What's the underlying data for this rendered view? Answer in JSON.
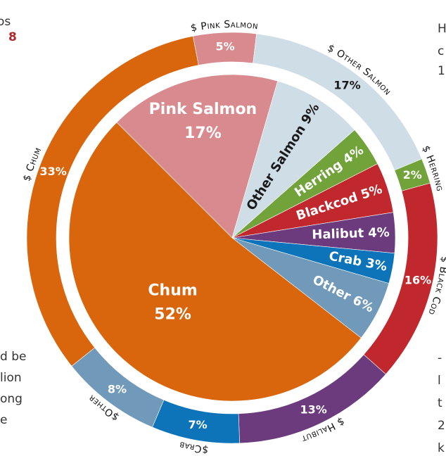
{
  "chart_data": [
    {
      "type": "pie",
      "categories": [
        "Pink Salmon",
        "Other Salmon",
        "Herring",
        "Blackcod",
        "Halibut",
        "Crab",
        "Other",
        "Chum"
      ],
      "values": [
        17,
        9,
        4,
        5,
        4,
        3,
        6,
        52
      ],
      "value_labels": [
        "17%",
        "9%",
        "4%",
        "5%",
        "4%",
        "3%",
        "6%",
        "52%"
      ],
      "colors": [
        "#d98a8e",
        "#cfdde7",
        "#72a33a",
        "#c1282e",
        "#6b3b7e",
        "#0d74b9",
        "#7199b9",
        "#d9650d"
      ]
    },
    {
      "type": "donut",
      "categories": [
        "$ Pink Salmon",
        "$ Other Salmon",
        "$ Herring",
        "$ Black Cod",
        "$ Halibut",
        "$Crab",
        "$Other",
        "$ Chum"
      ],
      "values": [
        5,
        17,
        2,
        16,
        13,
        7,
        8,
        33
      ],
      "value_labels": [
        "5%",
        "17%",
        "2%",
        "16%",
        "13%",
        "7%",
        "8%",
        "33%"
      ],
      "colors": [
        "#d98a8e",
        "#cfdde7",
        "#72a33a",
        "#c1282e",
        "#6b3b7e",
        "#0d74b9",
        "#7199b9",
        "#d9650d"
      ]
    }
  ],
  "page_text": {
    "top_left": [
      "os",
      "8"
    ],
    "left": [
      "d be",
      "lion",
      "ong",
      "e"
    ],
    "right": [
      "H",
      "c",
      "1"
    ],
    "bottom_right": [
      "-",
      "l",
      "t",
      "2",
      "k"
    ]
  }
}
